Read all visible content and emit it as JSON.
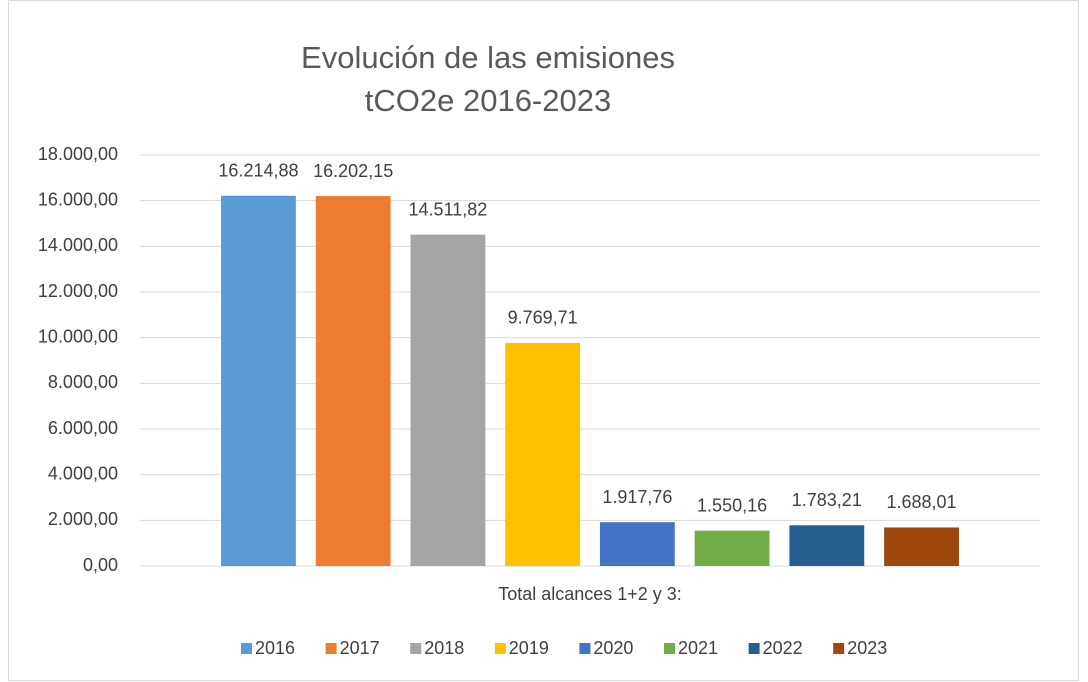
{
  "chart_data": {
    "type": "bar",
    "title": [
      "Evolución de las emisiones",
      "tCO2e 2016-2023"
    ],
    "categories": [
      "Total alcances 1+2 y 3:"
    ],
    "series": [
      {
        "name": "2016",
        "color": "#5b9bd5",
        "values": [
          16214.88
        ],
        "value_labels": [
          "16.214,88"
        ]
      },
      {
        "name": "2017",
        "color": "#ed7d31",
        "values": [
          16202.15
        ],
        "value_labels": [
          "16.202,15"
        ]
      },
      {
        "name": "2018",
        "color": "#a5a5a5",
        "values": [
          14511.82
        ],
        "value_labels": [
          "14.511,82"
        ]
      },
      {
        "name": "2019",
        "color": "#ffc000",
        "values": [
          9769.71
        ],
        "value_labels": [
          "9.769,71"
        ]
      },
      {
        "name": "2020",
        "color": "#4472c4",
        "values": [
          1917.76
        ],
        "value_labels": [
          "1.917,76"
        ]
      },
      {
        "name": "2021",
        "color": "#70ad47",
        "values": [
          1550.16
        ],
        "value_labels": [
          "1.550,16"
        ]
      },
      {
        "name": "2022",
        "color": "#255e91",
        "values": [
          1783.21
        ],
        "value_labels": [
          "1.783,21"
        ]
      },
      {
        "name": "2023",
        "color": "#9e480e",
        "values": [
          1688.01
        ],
        "value_labels": [
          "1.688,01"
        ]
      }
    ],
    "ylim": [
      0,
      18000
    ],
    "yticks": [
      {
        "value": 0,
        "label": "0,00"
      },
      {
        "value": 2000,
        "label": "2.000,00"
      },
      {
        "value": 4000,
        "label": "4.000,00"
      },
      {
        "value": 6000,
        "label": "6.000,00"
      },
      {
        "value": 8000,
        "label": "8.000,00"
      },
      {
        "value": 10000,
        "label": "10.000,00"
      },
      {
        "value": 12000,
        "label": "12.000,00"
      },
      {
        "value": 14000,
        "label": "14.000,00"
      },
      {
        "value": 16000,
        "label": "16.000,00"
      },
      {
        "value": 18000,
        "label": "18.000,00"
      }
    ],
    "grid": true,
    "legend": "bottom"
  }
}
